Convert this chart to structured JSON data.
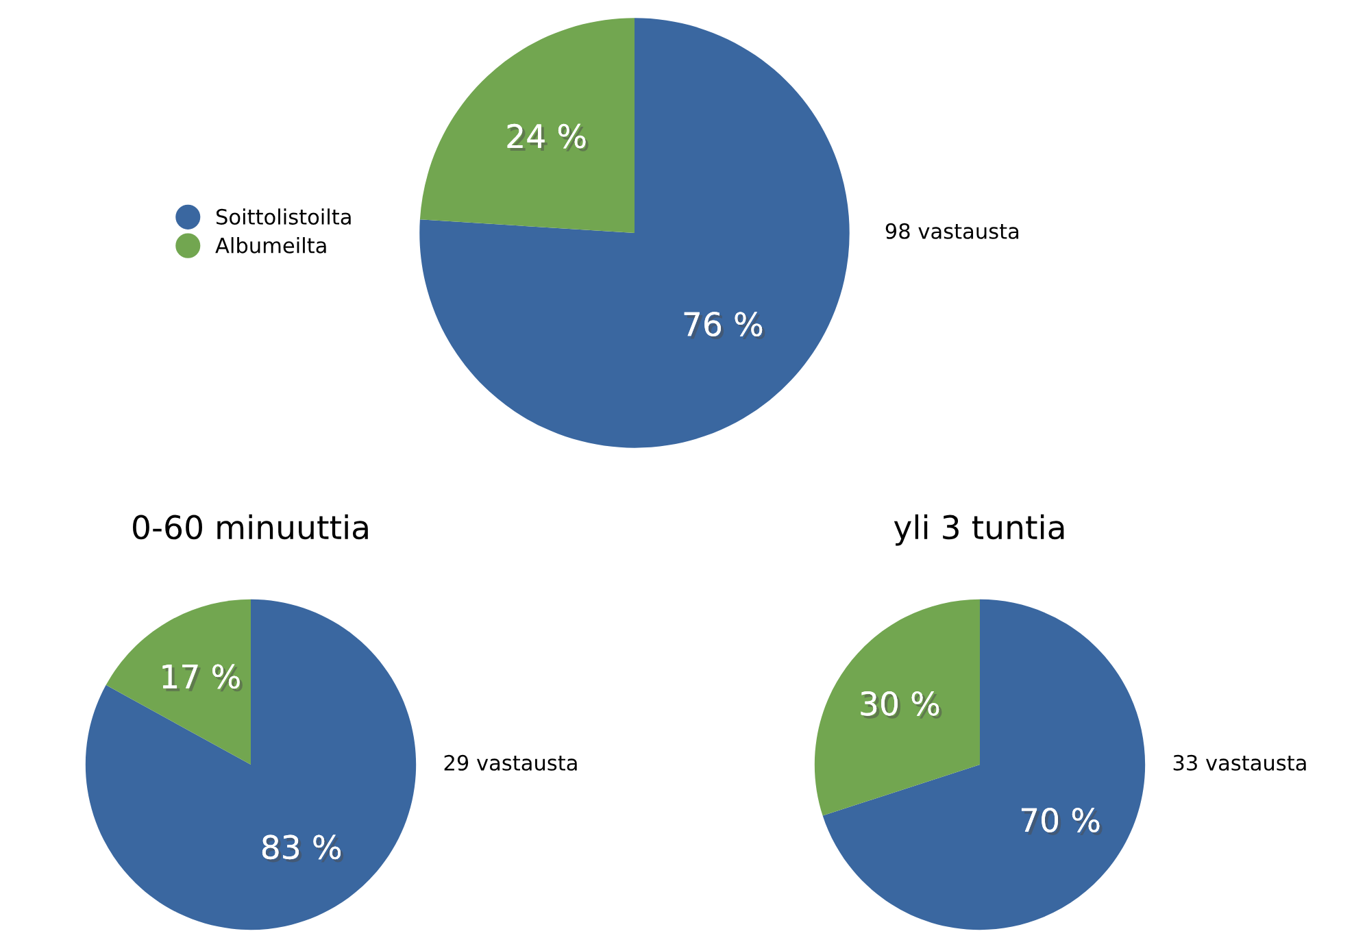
{
  "chart_data": [
    {
      "type": "pie",
      "categories": [
        "Soittolistoilta",
        "Albumeilta"
      ],
      "values": [
        76,
        24
      ],
      "colors": [
        "#3a67a0",
        "#72a650"
      ],
      "value_labels": [
        "76 %",
        "24 %"
      ],
      "legend": "left",
      "annotations": [
        "98 vastausta"
      ]
    },
    {
      "type": "pie",
      "title": "0-60 minuuttia",
      "categories": [
        null,
        null
      ],
      "values": [
        83,
        17
      ],
      "colors": [
        "#3a67a0",
        "#72a650"
      ],
      "value_labels": [
        "83 %",
        "17 %"
      ],
      "annotations": [
        "29 vastausta"
      ]
    },
    {
      "type": "pie",
      "title": "yli 3 tuntia",
      "categories": [
        null,
        null
      ],
      "values": [
        70,
        30
      ],
      "colors": [
        "#3a67a0",
        "#72a650"
      ],
      "value_labels": [
        "70 %",
        "30 %"
      ],
      "annotations": [
        "33 vastausta"
      ]
    }
  ]
}
